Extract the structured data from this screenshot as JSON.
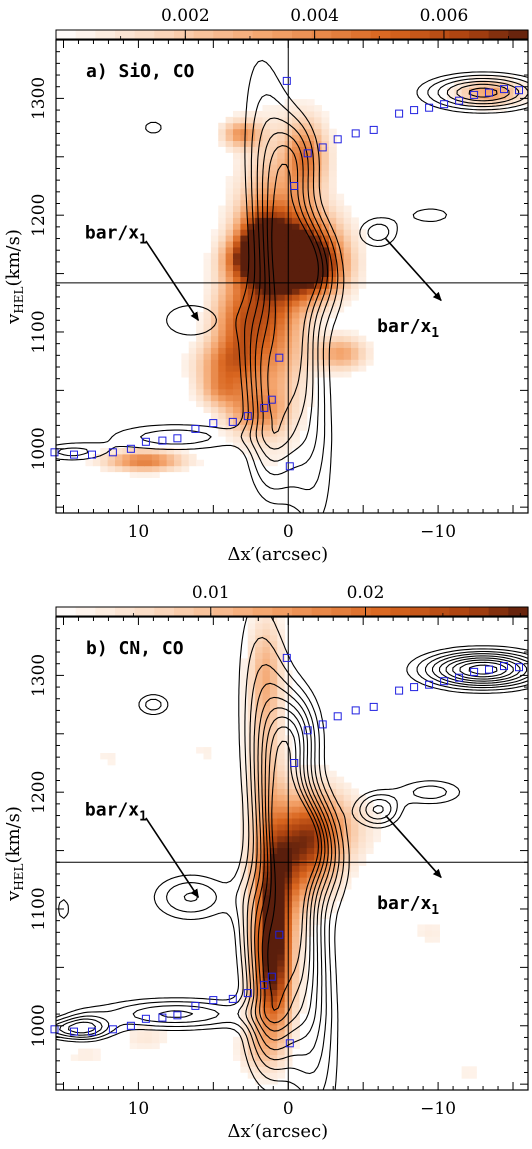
{
  "chart_data": [
    {
      "type": "heatmap",
      "panel_label": "a) SiO, CO",
      "xlabel": "Δx′(arcsec)",
      "ylabel": "v_HEL(km/s)",
      "ylabel_main": "v",
      "ylabel_sub": "HEL",
      "ylabel_unit": "(km/s)",
      "xlim": [
        15.5,
        -16.0
      ],
      "ylim": [
        945,
        1350
      ],
      "x_ticks": [
        10,
        0,
        -10
      ],
      "x_tick_labels": [
        "10",
        "0",
        "−10"
      ],
      "y_ticks": [
        1000,
        1100,
        1200,
        1300
      ],
      "y_tick_labels": [
        "1000",
        "1100",
        "1200",
        "1300"
      ],
      "colorbar": {
        "range": [
          0.0,
          0.0073
        ],
        "ticks": [
          0.002,
          0.004,
          0.006
        ],
        "tick_labels": [
          "0.002",
          "0.004",
          "0.006"
        ],
        "color_low": "#ffffff",
        "color_high": "#5a1e0c"
      },
      "crosshair": {
        "x": 0,
        "y": 1142
      },
      "annotations": [
        {
          "text_main": "bar/x",
          "text_sub": "1",
          "at": [
            11.5,
            1180
          ],
          "arrow_from": [
            9.5,
            1178
          ],
          "arrow_to": [
            6.0,
            1110
          ]
        },
        {
          "text_main": "bar/x",
          "text_sub": "1",
          "at": [
            -8.0,
            1100
          ],
          "arrow_from": [
            -6.5,
            1180
          ],
          "arrow_to": [
            -10.2,
            1127
          ]
        }
      ],
      "rotation_curve": [
        [
          15.6,
          997
        ],
        [
          14.3,
          995
        ],
        [
          13.1,
          995
        ],
        [
          11.7,
          997
        ],
        [
          10.5,
          1000
        ],
        [
          9.5,
          1006
        ],
        [
          8.4,
          1007
        ],
        [
          7.4,
          1009
        ],
        [
          6.2,
          1017
        ],
        [
          5.0,
          1022
        ],
        [
          3.7,
          1023
        ],
        [
          2.7,
          1028
        ],
        [
          1.6,
          1035
        ],
        [
          1.1,
          1042
        ],
        [
          0.6,
          1078
        ],
        [
          -0.1,
          985
        ],
        [
          0.1,
          1315
        ],
        [
          -0.4,
          1225
        ],
        [
          -1.3,
          1253
        ],
        [
          -2.3,
          1258
        ],
        [
          -3.3,
          1265
        ],
        [
          -4.5,
          1270
        ],
        [
          -5.7,
          1273
        ],
        [
          -7.4,
          1287
        ],
        [
          -8.4,
          1290
        ],
        [
          -9.4,
          1292
        ],
        [
          -10.4,
          1295
        ],
        [
          -11.4,
          1298
        ],
        [
          -12.4,
          1303
        ],
        [
          -13.4,
          1305
        ],
        [
          -14.4,
          1308
        ],
        [
          -15.4,
          1307
        ]
      ],
      "emission_blobs": [
        {
          "x": 1.2,
          "y": 1140,
          "sx": 1.6,
          "sy": 70,
          "v": 0.0055
        },
        {
          "x": -1.5,
          "y": 1155,
          "sx": 1.6,
          "sy": 18,
          "v": 0.0072
        },
        {
          "x": 1.5,
          "y": 1165,
          "sx": 1.3,
          "sy": 14,
          "v": 0.005
        },
        {
          "x": -1.0,
          "y": 1180,
          "sx": 1.8,
          "sy": 22,
          "v": 0.004
        },
        {
          "x": 3.5,
          "y": 1105,
          "sx": 1.2,
          "sy": 28,
          "v": 0.0035
        },
        {
          "x": -3.5,
          "y": 1082,
          "sx": 1.2,
          "sy": 10,
          "v": 0.0033
        },
        {
          "x": 4.3,
          "y": 1072,
          "sx": 1.4,
          "sy": 14,
          "v": 0.003
        },
        {
          "x": 2.3,
          "y": 1032,
          "sx": 1.4,
          "sy": 14,
          "v": 0.003
        },
        {
          "x": 2.0,
          "y": 1180,
          "sx": 1.0,
          "sy": 18,
          "v": 0.0032
        },
        {
          "x": 3.5,
          "y": 1162,
          "sx": 0.9,
          "sy": 12,
          "v": 0.002
        },
        {
          "x": 4.5,
          "y": 1050,
          "sx": 1.0,
          "sy": 10,
          "v": 0.0025
        },
        {
          "x": -1.2,
          "y": 1250,
          "sx": 1.0,
          "sy": 22,
          "v": 0.0042
        },
        {
          "x": 3.1,
          "y": 1270,
          "sx": 0.9,
          "sy": 8,
          "v": 0.0035
        },
        {
          "x": 9.6,
          "y": 990,
          "sx": 1.8,
          "sy": 6,
          "v": 0.0045
        },
        {
          "x": -13.5,
          "y": 1305,
          "sx": 1.5,
          "sy": 7,
          "v": 0.0035
        }
      ],
      "contour_levels": [
        0.2,
        0.32,
        0.46,
        0.6,
        0.74,
        0.88
      ],
      "co_components": [
        {
          "x": 0.0,
          "y": 1135,
          "sx": 1.6,
          "sy": 110,
          "rho": 0.62,
          "a": 1.0
        },
        {
          "x": -1.6,
          "y": 1160,
          "sx": 1.3,
          "sy": 30,
          "rho": 0.3,
          "a": 0.7
        },
        {
          "x": 1.6,
          "y": 1070,
          "sx": 1.1,
          "sy": 40,
          "rho": 0.3,
          "a": 0.55
        },
        {
          "x": 1.2,
          "y": 1005,
          "sx": 1.1,
          "sy": 35,
          "rho": 0.0,
          "a": 0.5
        },
        {
          "x": -0.5,
          "y": 1248,
          "sx": 1.1,
          "sy": 26,
          "rho": 0.0,
          "a": 0.45
        },
        {
          "x": -13.0,
          "y": 1305,
          "sx": 2.5,
          "sy": 10,
          "rho": 0.0,
          "a": 0.95
        },
        {
          "x": -6.0,
          "y": 1185,
          "sx": 1.0,
          "sy": 10,
          "rho": 0.0,
          "a": 0.4
        },
        {
          "x": 7.5,
          "y": 1010,
          "sx": 3.5,
          "sy": 9,
          "rho": 0.0,
          "a": 0.4
        },
        {
          "x": 14.5,
          "y": 997,
          "sx": 1.8,
          "sy": 6,
          "rho": 0.0,
          "a": 0.35
        },
        {
          "x": 6.5,
          "y": 1110,
          "sx": 1.8,
          "sy": 14,
          "rho": 0.0,
          "a": 0.3
        },
        {
          "x": -9.5,
          "y": 1200,
          "sx": 1.6,
          "sy": 8,
          "rho": 0.0,
          "a": 0.25
        },
        {
          "x": 9.0,
          "y": 1275,
          "sx": 0.8,
          "sy": 7,
          "rho": 0.0,
          "a": 0.25
        }
      ]
    },
    {
      "type": "heatmap",
      "panel_label": "b) CN, CO",
      "xlabel": "Δx′(arcsec)",
      "ylabel": "v_HEL(km/s)",
      "ylabel_main": "v",
      "ylabel_sub": "HEL",
      "ylabel_unit": "(km/s)",
      "xlim": [
        15.5,
        -16.0
      ],
      "ylim": [
        945,
        1350
      ],
      "x_ticks": [
        10,
        0,
        -10
      ],
      "x_tick_labels": [
        "10",
        "0",
        "−10"
      ],
      "y_ticks": [
        1000,
        1100,
        1200,
        1300
      ],
      "y_tick_labels": [
        "1000",
        "1100",
        "1200",
        "1300"
      ],
      "colorbar": {
        "range": [
          0.0,
          0.0305
        ],
        "ticks": [
          0.01,
          0.02
        ],
        "tick_labels": [
          "0.01",
          "0.02"
        ],
        "color_low": "#ffffff",
        "color_high": "#5a1e0c"
      },
      "crosshair": {
        "x": 0,
        "y": 1140
      },
      "annotations": [
        {
          "text_main": "bar/x",
          "text_sub": "1",
          "at": [
            11.5,
            1180
          ],
          "arrow_from": [
            9.5,
            1178
          ],
          "arrow_to": [
            6.0,
            1110
          ]
        },
        {
          "text_main": "bar/x",
          "text_sub": "1",
          "at": [
            -8.0,
            1100
          ],
          "arrow_from": [
            -6.5,
            1180
          ],
          "arrow_to": [
            -10.2,
            1127
          ]
        }
      ],
      "rotation_curve": [
        [
          15.6,
          997
        ],
        [
          14.3,
          995
        ],
        [
          13.1,
          995
        ],
        [
          11.7,
          997
        ],
        [
          10.5,
          1000
        ],
        [
          9.5,
          1006
        ],
        [
          8.4,
          1007
        ],
        [
          7.4,
          1009
        ],
        [
          6.2,
          1017
        ],
        [
          5.0,
          1022
        ],
        [
          3.7,
          1023
        ],
        [
          2.7,
          1028
        ],
        [
          1.6,
          1035
        ],
        [
          1.1,
          1042
        ],
        [
          0.6,
          1078
        ],
        [
          -0.1,
          985
        ],
        [
          0.1,
          1315
        ],
        [
          -0.4,
          1225
        ],
        [
          -1.3,
          1253
        ],
        [
          -2.3,
          1258
        ],
        [
          -3.3,
          1265
        ],
        [
          -4.5,
          1270
        ],
        [
          -5.7,
          1273
        ],
        [
          -7.4,
          1287
        ],
        [
          -8.4,
          1290
        ],
        [
          -9.4,
          1292
        ],
        [
          -10.4,
          1295
        ],
        [
          -11.4,
          1298
        ],
        [
          -12.4,
          1303
        ],
        [
          -13.4,
          1305
        ],
        [
          -14.4,
          1308
        ],
        [
          -15.4,
          1307
        ]
      ],
      "emission_blobs": [
        {
          "x": 1.0,
          "y": 1090,
          "sx": 0.9,
          "sy": 45,
          "v": 0.03
        },
        {
          "x": 1.1,
          "y": 1030,
          "sx": 1.0,
          "sy": 35,
          "v": 0.016
        },
        {
          "x": 1.5,
          "y": 1300,
          "sx": 0.8,
          "sy": 35,
          "v": 0.012
        },
        {
          "x": 1.5,
          "y": 1205,
          "sx": 0.9,
          "sy": 40,
          "v": 0.009
        },
        {
          "x": -1.5,
          "y": 1160,
          "sx": 1.5,
          "sy": 30,
          "v": 0.018
        },
        {
          "x": 0.0,
          "y": 1140,
          "sx": 1.5,
          "sy": 30,
          "v": 0.012
        },
        {
          "x": -3.0,
          "y": 1170,
          "sx": 2.0,
          "sy": 20,
          "v": 0.007
        },
        {
          "x": 2.0,
          "y": 980,
          "sx": 1.0,
          "sy": 15,
          "v": 0.006
        },
        {
          "x": 9.5,
          "y": 990,
          "sx": 1.2,
          "sy": 8,
          "v": 0.004
        },
        {
          "x": 13.5,
          "y": 975,
          "sx": 1.0,
          "sy": 8,
          "v": 0.003
        },
        {
          "x": -9.5,
          "y": 1080,
          "sx": 1.0,
          "sy": 10,
          "v": 0.003
        },
        {
          "x": 5.5,
          "y": 1235,
          "sx": 0.8,
          "sy": 10,
          "v": 0.0025
        },
        {
          "x": 12.0,
          "y": 1230,
          "sx": 0.8,
          "sy": 8,
          "v": 0.0025
        },
        {
          "x": -12.0,
          "y": 960,
          "sx": 0.9,
          "sy": 8,
          "v": 0.0025
        },
        {
          "x": 14.0,
          "y": 1330,
          "sx": 0.6,
          "sy": 6,
          "v": 0.002
        }
      ],
      "contour_levels": [
        0.12,
        0.2,
        0.29,
        0.38,
        0.48,
        0.58,
        0.68,
        0.78,
        0.88
      ],
      "co_components": [
        {
          "x": 0.0,
          "y": 1135,
          "sx": 1.6,
          "sy": 110,
          "rho": 0.62,
          "a": 1.0
        },
        {
          "x": -1.6,
          "y": 1160,
          "sx": 1.3,
          "sy": 30,
          "rho": 0.3,
          "a": 0.7
        },
        {
          "x": 1.6,
          "y": 1070,
          "sx": 1.1,
          "sy": 40,
          "rho": 0.3,
          "a": 0.55
        },
        {
          "x": 1.2,
          "y": 1005,
          "sx": 1.1,
          "sy": 35,
          "rho": 0.0,
          "a": 0.5
        },
        {
          "x": -0.5,
          "y": 1248,
          "sx": 1.1,
          "sy": 26,
          "rho": 0.0,
          "a": 0.45
        },
        {
          "x": -13.0,
          "y": 1305,
          "sx": 2.5,
          "sy": 10,
          "rho": 0.0,
          "a": 0.95
        },
        {
          "x": -6.0,
          "y": 1185,
          "sx": 1.0,
          "sy": 10,
          "rho": 0.0,
          "a": 0.4
        },
        {
          "x": 7.5,
          "y": 1010,
          "sx": 3.5,
          "sy": 9,
          "rho": 0.0,
          "a": 0.4
        },
        {
          "x": 14.5,
          "y": 997,
          "sx": 1.8,
          "sy": 6,
          "rho": 0.0,
          "a": 0.35
        },
        {
          "x": 6.5,
          "y": 1110,
          "sx": 1.8,
          "sy": 14,
          "rho": 0.0,
          "a": 0.3
        },
        {
          "x": -9.5,
          "y": 1200,
          "sx": 1.6,
          "sy": 8,
          "rho": 0.0,
          "a": 0.25
        },
        {
          "x": 9.0,
          "y": 1275,
          "sx": 0.8,
          "sy": 7,
          "rho": 0.0,
          "a": 0.25
        },
        {
          "x": 13.5,
          "y": 1000,
          "sx": 1.0,
          "sy": 8,
          "rho": 0.0,
          "a": 0.25
        },
        {
          "x": 15.0,
          "y": 1100,
          "sx": 0.5,
          "sy": 12,
          "rho": 0.0,
          "a": 0.15
        }
      ]
    }
  ]
}
